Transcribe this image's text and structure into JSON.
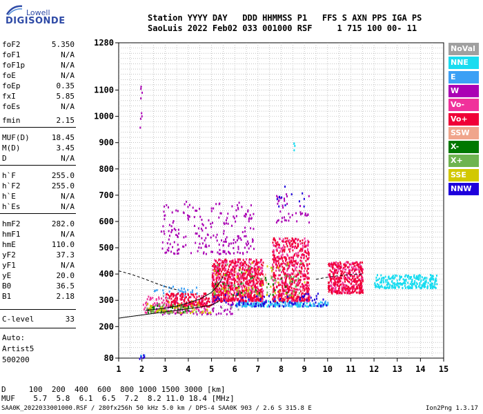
{
  "logo": {
    "line1": "Lowell",
    "line2": "DIGISONDE"
  },
  "header": {
    "labels": "Station YYYY DAY   DDD HHMMSS P1   FFS S AXN PPS IGA PS",
    "values": "SaoLuis 2022 Feb02 033 001000 RSF     1 715 100 00- 11"
  },
  "params": [
    {
      "label": "foF2",
      "value": "5.350"
    },
    {
      "label": "foF1",
      "value": "N/A"
    },
    {
      "label": "foF1p",
      "value": "N/A"
    },
    {
      "label": "foE",
      "value": "N/A"
    },
    {
      "label": "foEp",
      "value": "0.35"
    },
    {
      "label": "fxI",
      "value": "5.85"
    },
    {
      "label": "foEs",
      "value": "N/A"
    },
    {
      "label": "fmin",
      "value": "2.15"
    },
    {
      "label": "MUF(D)",
      "value": "18.45"
    },
    {
      "label": "M(D)",
      "value": "3.45"
    },
    {
      "label": "D",
      "value": "N/A"
    },
    {
      "label": "h`F",
      "value": "255.0"
    },
    {
      "label": "h`F2",
      "value": "255.0"
    },
    {
      "label": "h`E",
      "value": "N/A"
    },
    {
      "label": "h`Es",
      "value": "N/A"
    },
    {
      "label": "hmF2",
      "value": "282.0"
    },
    {
      "label": "hmF1",
      "value": "N/A"
    },
    {
      "label": "hmE",
      "value": "110.0"
    },
    {
      "label": "yF2",
      "value": "37.3"
    },
    {
      "label": "yF1",
      "value": "N/A"
    },
    {
      "label": "yE",
      "value": "20.0"
    },
    {
      "label": "B0",
      "value": "36.5"
    },
    {
      "label": "B1",
      "value": "2.18"
    },
    {
      "label": "C-level",
      "value": "33"
    }
  ],
  "auto": {
    "line1": "Auto:",
    "line2": "Artist5",
    "line3": "500200"
  },
  "legend": [
    {
      "label": "NoVal",
      "color": "#a0a0a0"
    },
    {
      "label": "NNE",
      "color": "#19dcf0"
    },
    {
      "label": "E",
      "color": "#3ca0f5"
    },
    {
      "label": "W",
      "color": "#aa00b4"
    },
    {
      "label": "Vo-",
      "color": "#f0329b"
    },
    {
      "label": "Vo+",
      "color": "#f00037"
    },
    {
      "label": "SSW",
      "color": "#f0a58c"
    },
    {
      "label": "X-",
      "color": "#007800"
    },
    {
      "label": "X+",
      "color": "#6eb450"
    },
    {
      "label": "SSE",
      "color": "#d2c800"
    },
    {
      "label": "NNW",
      "color": "#1e00dc"
    }
  ],
  "bottom": {
    "d_row": "D     100  200  400  600  800 1000 1500 3000 [km]",
    "muf_row": "MUF    5.7  5.8  6.1  6.5  7.2  8.2 11.0 18.4 [MHz]"
  },
  "footer": {
    "left": "SAA0K_2022033001000.RSF / 280fx256h 50 kHz 5.0 km / DPS-4 SAA0K 903 / 2.6 S 315.8 E",
    "right": "Ion2Png 1.3.17"
  },
  "chart_data": {
    "type": "scatter",
    "xlim": [
      1,
      15
    ],
    "ylim": [
      80,
      1280
    ],
    "x_ticks": [
      1,
      2,
      3,
      4,
      5,
      6,
      7,
      8,
      9,
      10,
      11,
      12,
      13,
      14,
      15
    ],
    "y_ticks": [
      80,
      200,
      300,
      400,
      500,
      600,
      700,
      800,
      900,
      1000,
      1100,
      1280
    ],
    "grid": true,
    "series": [
      {
        "name": "NoVal",
        "color": "#a0a0a0",
        "mode": "scatter",
        "clusters": [
          [
            2.0,
            7.2,
            260,
            330,
            12
          ]
        ]
      },
      {
        "name": "NNE",
        "color": "#19dcf0",
        "mode": "scatter",
        "clusters": [
          [
            6.0,
            10.0,
            280,
            300,
            90
          ],
          [
            12.0,
            14.7,
            350,
            400,
            260
          ],
          [
            8.5,
            8.6,
            860,
            940,
            4
          ]
        ]
      },
      {
        "name": "E",
        "color": "#3ca0f5",
        "mode": "scatter",
        "clusters": [
          [
            6.0,
            10.0,
            280,
            300,
            110
          ],
          [
            2.5,
            4.5,
            320,
            360,
            30
          ],
          [
            1.9,
            2.1,
            90,
            100,
            4
          ]
        ]
      },
      {
        "name": "W",
        "color": "#aa00b4",
        "mode": "scatter",
        "clusters": [
          [
            2.8,
            6.8,
            480,
            680,
            220
          ],
          [
            1.9,
            2.0,
            960,
            1140,
            8
          ],
          [
            7.6,
            9.2,
            600,
            720,
            40
          ],
          [
            2.5,
            6.0,
            250,
            300,
            70
          ]
        ]
      },
      {
        "name": "Vo-",
        "color": "#f0329b",
        "mode": "scatter",
        "clusters": [
          [
            5.0,
            7.2,
            300,
            460,
            400
          ],
          [
            7.6,
            9.2,
            300,
            540,
            300
          ],
          [
            10.0,
            11.5,
            330,
            450,
            200
          ],
          [
            2.0,
            4.8,
            255,
            320,
            140
          ]
        ]
      },
      {
        "name": "Vo+",
        "color": "#f00037",
        "mode": "scatter",
        "clusters": [
          [
            5.0,
            7.2,
            300,
            460,
            500
          ],
          [
            7.6,
            9.2,
            300,
            540,
            380
          ],
          [
            10.0,
            11.5,
            330,
            450,
            250
          ],
          [
            3.0,
            5.0,
            280,
            330,
            150
          ]
        ]
      },
      {
        "name": "SSW",
        "color": "#f0a58c",
        "mode": "scatter",
        "clusters": [
          [
            5.0,
            9.0,
            310,
            420,
            40
          ]
        ]
      },
      {
        "name": "X-",
        "color": "#007800",
        "mode": "scatter",
        "clusters": [
          [
            2.2,
            4.0,
            255,
            290,
            30
          ],
          [
            5.0,
            8.5,
            320,
            420,
            30
          ]
        ]
      },
      {
        "name": "X+",
        "color": "#6eb450",
        "mode": "scatter",
        "clusters": [
          [
            2.2,
            4.5,
            255,
            290,
            40
          ],
          [
            5.0,
            9.0,
            320,
            450,
            50
          ]
        ]
      },
      {
        "name": "SSE",
        "color": "#d2c800",
        "mode": "scatter",
        "clusters": [
          [
            2.2,
            5.0,
            255,
            300,
            40
          ],
          [
            5.0,
            9.0,
            320,
            450,
            40
          ]
        ]
      },
      {
        "name": "NNW",
        "color": "#1e00dc",
        "mode": "scatter",
        "clusters": [
          [
            5.0,
            10.0,
            280,
            330,
            80
          ],
          [
            7.7,
            9.0,
            660,
            740,
            12
          ],
          [
            1.8,
            2.1,
            80,
            95,
            5
          ]
        ]
      }
    ],
    "profile_curves": [
      {
        "name": "true-height-profile",
        "color": "#000000",
        "dash": false,
        "points": [
          [
            1.0,
            232
          ],
          [
            1.5,
            238
          ],
          [
            2.0,
            244
          ],
          [
            2.5,
            250
          ],
          [
            3.0,
            256
          ],
          [
            3.5,
            262
          ],
          [
            4.0,
            268
          ],
          [
            4.5,
            274
          ],
          [
            5.0,
            282
          ],
          [
            5.3,
            295
          ],
          [
            5.35,
            300
          ]
        ]
      },
      {
        "name": "virtual-height-trace",
        "color": "#000000",
        "dash": false,
        "points": [
          [
            2.15,
            262
          ],
          [
            2.5,
            265
          ],
          [
            3.0,
            270
          ],
          [
            3.5,
            278
          ],
          [
            4.0,
            290
          ],
          [
            4.5,
            305
          ],
          [
            5.0,
            330
          ],
          [
            5.3,
            360
          ],
          [
            5.5,
            390
          ]
        ]
      },
      {
        "name": "extrapolated-profile",
        "color": "#000000",
        "dash": true,
        "points": [
          [
            1.0,
            412
          ],
          [
            1.5,
            400
          ],
          [
            2.0,
            385
          ],
          [
            2.5,
            368
          ],
          [
            3.0,
            352
          ],
          [
            3.5,
            340
          ]
        ]
      },
      {
        "name": "x-trace-extrapolation",
        "color": "#000000",
        "dash": true,
        "points": [
          [
            9.5,
            380
          ],
          [
            10.0,
            388
          ],
          [
            10.5,
            394
          ],
          [
            11.0,
            398
          ],
          [
            11.5,
            400
          ]
        ]
      }
    ]
  }
}
